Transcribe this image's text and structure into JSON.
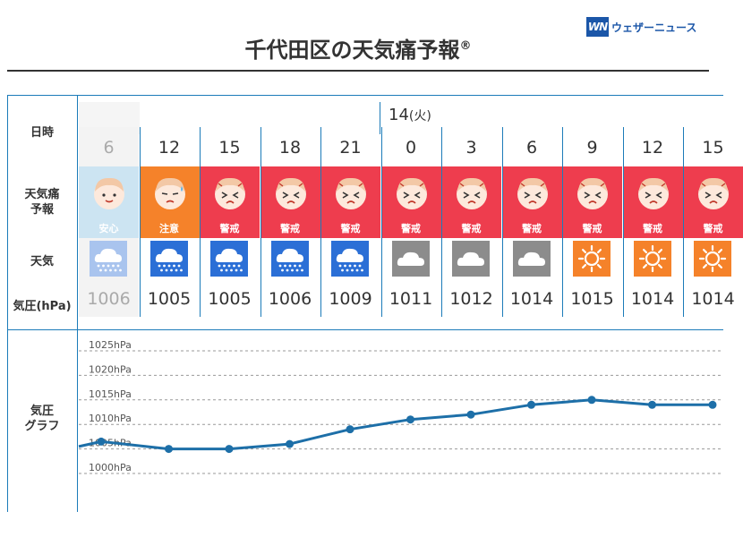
{
  "brand": {
    "mark": "WN",
    "name": "ウェザーニュース"
  },
  "title": "千代田区の天気痛予報",
  "title_mark": "®",
  "row_labels": {
    "datetime": "日時",
    "pain_line1": "天気痛",
    "pain_line2": "予報",
    "weather": "天気",
    "pressure": "気圧(hPa)",
    "graph_line1": "気圧",
    "graph_line2": "グラフ"
  },
  "date": {
    "day": "14",
    "weekday": "(火)"
  },
  "columns": [
    {
      "hour": "6",
      "pain": "安心",
      "level": "safe",
      "weather": "rain",
      "pressure": "1006",
      "dim": true
    },
    {
      "hour": "12",
      "pain": "注意",
      "level": "caution",
      "weather": "rain",
      "pressure": "1005"
    },
    {
      "hour": "15",
      "pain": "警戒",
      "level": "alert",
      "weather": "rain",
      "pressure": "1005"
    },
    {
      "hour": "18",
      "pain": "警戒",
      "level": "alert",
      "weather": "rain",
      "pressure": "1006"
    },
    {
      "hour": "21",
      "pain": "警戒",
      "level": "alert",
      "weather": "rain",
      "pressure": "1009"
    },
    {
      "hour": "0",
      "pain": "警戒",
      "level": "alert",
      "weather": "cloudy",
      "pressure": "1011"
    },
    {
      "hour": "3",
      "pain": "警戒",
      "level": "alert",
      "weather": "cloudy",
      "pressure": "1012"
    },
    {
      "hour": "6",
      "pain": "警戒",
      "level": "alert",
      "weather": "cloudy",
      "pressure": "1014"
    },
    {
      "hour": "9",
      "pain": "警戒",
      "level": "alert",
      "weather": "sunny",
      "pressure": "1015"
    },
    {
      "hour": "12",
      "pain": "警戒",
      "level": "alert",
      "weather": "sunny",
      "pressure": "1014"
    },
    {
      "hour": "15",
      "pain": "警戒",
      "level": "alert",
      "weather": "sunny",
      "pressure": "1014"
    }
  ],
  "colors": {
    "safe": "#cce4f2",
    "caution": "#f5822a",
    "alert": "#ee3d4e",
    "rain": "#2b6fd6",
    "rain_dim": "#a9c4ee",
    "cloudy": "#8c8c8c",
    "sunny": "#f5822a",
    "line": "#1d6fa8",
    "border": "#1b7bb9"
  },
  "chart_data": {
    "type": "line",
    "y_ticks": [
      "1025hPa",
      "1020hPa",
      "1015hPa",
      "1010hPa",
      "1005hPa",
      "1000hPa"
    ],
    "ylim": [
      1000,
      1025
    ],
    "series": [
      {
        "values": [
          1006.5,
          1005,
          1005,
          1006,
          1009,
          1011,
          1012,
          1014,
          1015,
          1014,
          1014
        ]
      }
    ]
  }
}
